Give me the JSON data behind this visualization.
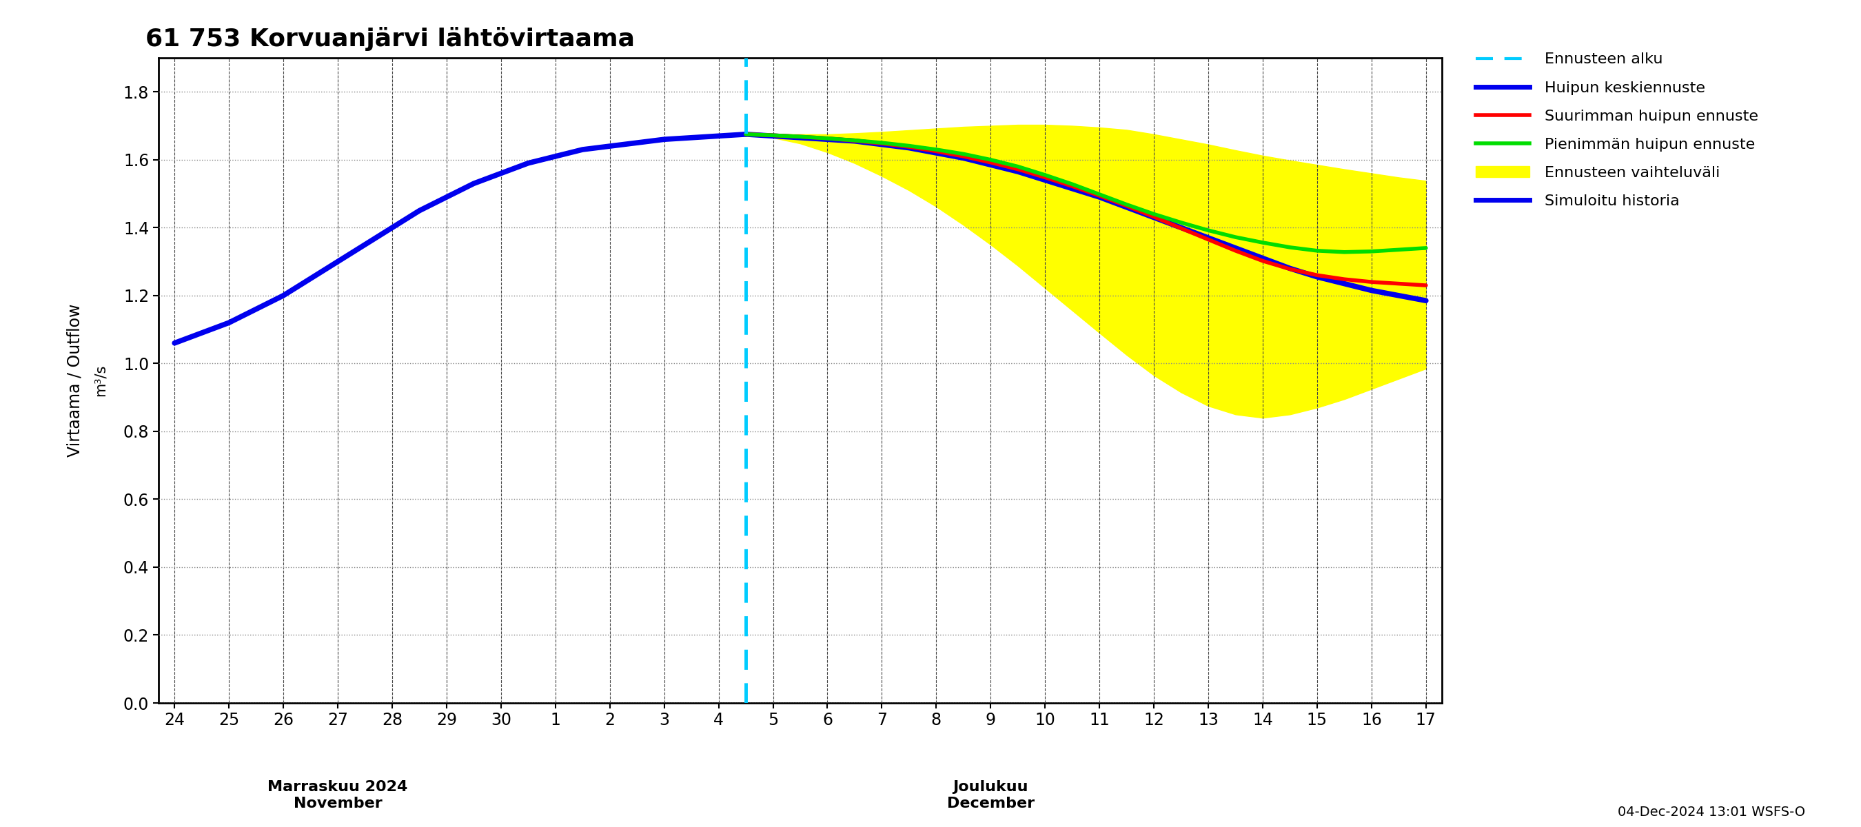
{
  "title": "61 753 Korvuanjärvi lähtövirtaama",
  "ylabel_line1": "Virtaama / Outflow",
  "ylabel_line2": "m³/s",
  "ylim": [
    0.0,
    1.9
  ],
  "yticks": [
    0.0,
    0.2,
    0.4,
    0.6,
    0.8,
    1.0,
    1.2,
    1.4,
    1.6,
    1.8
  ],
  "date_label_nov": "Marraskuu 2024\nNovember",
  "date_label_dec": "Joulukuu\nDecember",
  "footer_text": "04-Dec-2024 13:01 WSFS-O",
  "legend_labels": [
    "Ennusteen alku",
    "Huipun keskiennuste",
    "Suurimman huipun ennuste",
    "Pienimmän huipun ennuste",
    "Ennusteen vaihteluväli",
    "Simuloitu historia"
  ],
  "colors": {
    "history": "#0000EE",
    "mean_forecast": "#0000EE",
    "max_forecast": "#FF0000",
    "min_forecast": "#00DD00",
    "range_fill": "#FFFF00",
    "forecast_line": "#00CCFF",
    "background": "#FFFFFF"
  },
  "history_x": [
    0,
    0.5,
    1,
    1.5,
    2,
    2.5,
    3,
    3.5,
    4,
    4.5,
    5,
    5.5,
    6,
    6.5,
    7,
    7.5,
    8,
    8.5,
    9,
    9.5,
    10,
    10.5
  ],
  "history_y": [
    1.06,
    1.09,
    1.12,
    1.16,
    1.2,
    1.25,
    1.3,
    1.35,
    1.4,
    1.45,
    1.49,
    1.53,
    1.56,
    1.59,
    1.61,
    1.63,
    1.64,
    1.65,
    1.66,
    1.665,
    1.67,
    1.675
  ],
  "mean_x": [
    10.5,
    11,
    11.5,
    12,
    12.5,
    13,
    13.5,
    14,
    14.5,
    15,
    15.5,
    16,
    16.5,
    17,
    17.5,
    18,
    18.5,
    19,
    19.5,
    20,
    20.5,
    21,
    21.5,
    22,
    22.5,
    23
  ],
  "mean_y": [
    1.675,
    1.67,
    1.665,
    1.66,
    1.655,
    1.645,
    1.635,
    1.62,
    1.605,
    1.585,
    1.565,
    1.54,
    1.515,
    1.49,
    1.46,
    1.43,
    1.4,
    1.37,
    1.34,
    1.31,
    1.28,
    1.255,
    1.235,
    1.215,
    1.2,
    1.185
  ],
  "max_x": [
    10.5,
    11,
    11.5,
    12,
    12.5,
    13,
    13.5,
    14,
    14.5,
    15,
    15.5,
    16,
    16.5,
    17,
    17.5,
    18,
    18.5,
    19,
    19.5,
    20,
    20.5,
    21,
    21.5,
    22,
    22.5,
    23
  ],
  "max_y": [
    1.675,
    1.672,
    1.668,
    1.663,
    1.656,
    1.648,
    1.638,
    1.625,
    1.61,
    1.592,
    1.572,
    1.548,
    1.522,
    1.494,
    1.464,
    1.432,
    1.398,
    1.365,
    1.332,
    1.302,
    1.278,
    1.26,
    1.248,
    1.24,
    1.235,
    1.23
  ],
  "min_x": [
    10.5,
    11,
    11.5,
    12,
    12.5,
    13,
    13.5,
    14,
    14.5,
    15,
    15.5,
    16,
    16.5,
    17,
    17.5,
    18,
    18.5,
    19,
    19.5,
    20,
    20.5,
    21,
    21.5,
    22,
    22.5,
    23
  ],
  "min_y": [
    1.675,
    1.672,
    1.668,
    1.663,
    1.657,
    1.65,
    1.641,
    1.63,
    1.617,
    1.6,
    1.58,
    1.555,
    1.528,
    1.498,
    1.468,
    1.44,
    1.415,
    1.392,
    1.372,
    1.356,
    1.342,
    1.332,
    1.328,
    1.33,
    1.335,
    1.34
  ],
  "range_upper_x": [
    10.5,
    11,
    11.5,
    12,
    12.5,
    13,
    13.5,
    14,
    14.5,
    15,
    15.5,
    16,
    16.5,
    17,
    17.5,
    18,
    18.5,
    19,
    19.5,
    20,
    20.5,
    21,
    21.5,
    22,
    22.5,
    23
  ],
  "range_upper_y": [
    1.675,
    1.675,
    1.675,
    1.675,
    1.678,
    1.682,
    1.687,
    1.692,
    1.697,
    1.7,
    1.703,
    1.703,
    1.7,
    1.695,
    1.688,
    1.675,
    1.66,
    1.645,
    1.628,
    1.612,
    1.598,
    1.585,
    1.572,
    1.56,
    1.548,
    1.538
  ],
  "range_lower_x": [
    10.5,
    11,
    11.5,
    12,
    12.5,
    13,
    13.5,
    14,
    14.5,
    15,
    15.5,
    16,
    16.5,
    17,
    17.5,
    18,
    18.5,
    19,
    19.5,
    20,
    20.5,
    21,
    21.5,
    22,
    22.5,
    23
  ],
  "range_lower_y": [
    1.675,
    1.665,
    1.648,
    1.622,
    1.59,
    1.552,
    1.51,
    1.462,
    1.408,
    1.35,
    1.288,
    1.222,
    1.156,
    1.09,
    1.025,
    0.965,
    0.915,
    0.875,
    0.85,
    0.84,
    0.85,
    0.87,
    0.895,
    0.925,
    0.955,
    0.985
  ]
}
